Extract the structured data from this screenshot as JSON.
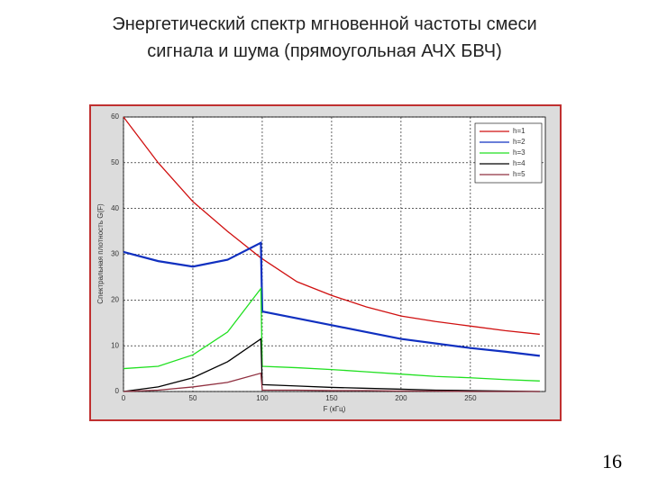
{
  "chart_data": {
    "type": "line",
    "title": "Энергетический спектр мгновенной частоты смеси сигнала и шума (прямоугольная АЧХ БВЧ)",
    "xlabel": "F (кГц)",
    "ylabel": "Спектральная плотность G(F)",
    "x": [
      0,
      25,
      50,
      75,
      99,
      100,
      125,
      150,
      175,
      200,
      225,
      250,
      275,
      300
    ],
    "xlim": [
      0,
      304
    ],
    "ylim": [
      0,
      60
    ],
    "xticks": [
      0,
      50,
      100,
      150,
      200,
      250
    ],
    "yticks": [
      0,
      10,
      20,
      30,
      40,
      50,
      60
    ],
    "grid": true,
    "legend": "upper right",
    "series": [
      {
        "name": "h=1",
        "color": "#d01010",
        "values": [
          60,
          50,
          41.5,
          35,
          29.2,
          29,
          24,
          21,
          18.5,
          16.5,
          15.3,
          14.3,
          13.3,
          12.5
        ]
      },
      {
        "name": "h=2",
        "color": "#1030c0",
        "values": [
          30.5,
          28.5,
          27.3,
          28.8,
          32.5,
          17.5,
          16,
          14.5,
          13,
          11.5,
          10.5,
          9.5,
          8.7,
          7.8
        ]
      },
      {
        "name": "h=3",
        "color": "#20e020",
        "values": [
          5,
          5.5,
          8,
          13,
          22.5,
          5.5,
          5.2,
          4.8,
          4.3,
          3.8,
          3.3,
          3,
          2.6,
          2.3
        ]
      },
      {
        "name": "h=4",
        "color": "#000000",
        "values": [
          0,
          1,
          3,
          6.5,
          11.5,
          1.5,
          1.2,
          0.9,
          0.7,
          0.5,
          0.3,
          0.2,
          0.1,
          0
        ]
      },
      {
        "name": "h=5",
        "color": "#903040",
        "values": [
          0,
          0.3,
          1,
          2,
          4,
          0.3,
          0.3,
          0.2,
          0.2,
          0.1,
          0.1,
          0,
          0,
          0
        ]
      }
    ]
  },
  "page_number": 16
}
